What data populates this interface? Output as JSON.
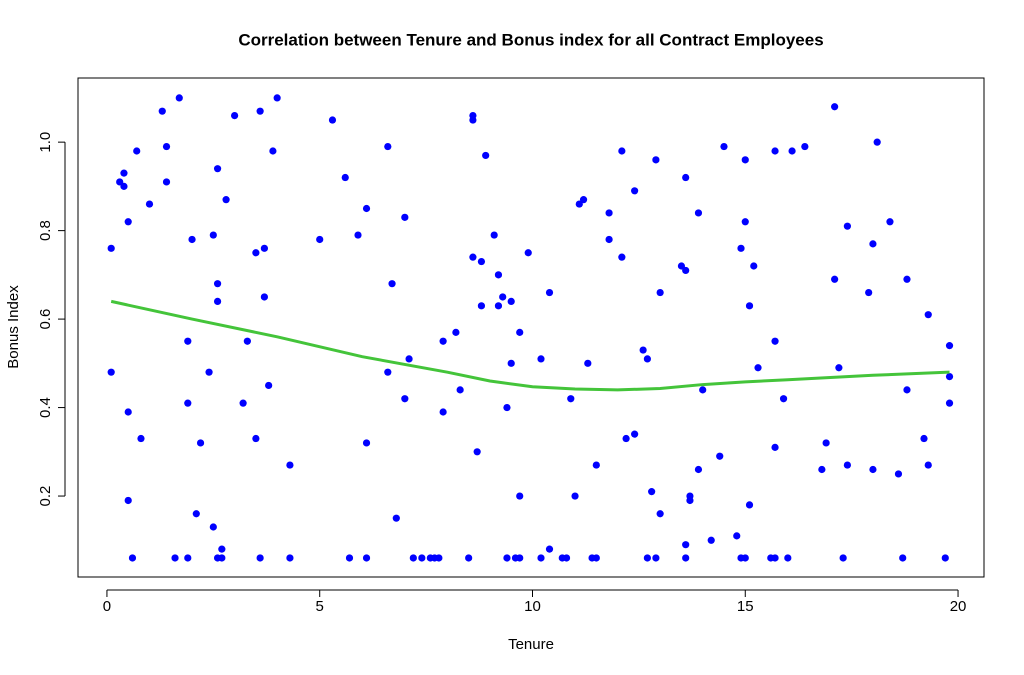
{
  "chart_data": {
    "type": "scatter",
    "title": "Correlation between Tenure and Bonus index for all Contract Employees",
    "x_label": "Tenure",
    "y_label": "Bonus Index",
    "xlim": [
      -0.68,
      20.61
    ],
    "ylim": [
      0.017,
      1.145
    ],
    "xticks": [
      0,
      5,
      10,
      15,
      20
    ],
    "yticks": [
      0.2,
      0.4,
      0.6,
      0.8,
      {
        "value": 1,
        "label": "1.0"
      }
    ],
    "grid": false,
    "points": {
      "color": "#0000ff",
      "x": [
        0.1,
        0.1,
        0.3,
        0.4,
        0.4,
        0.5,
        0.5,
        0.5,
        0.6,
        0.7,
        0.8,
        1.0,
        1.3,
        1.4,
        1.4,
        1.6,
        1.7,
        1.9,
        1.9,
        1.9,
        2.0,
        2.1,
        2.2,
        2.4,
        2.5,
        2.5,
        2.6,
        2.6,
        2.6,
        2.6,
        2.7,
        2.7,
        2.8,
        3.0,
        3.2,
        3.3,
        3.5,
        3.5,
        3.6,
        3.6,
        3.7,
        3.7,
        3.8,
        3.9,
        4.0,
        4.3,
        4.3,
        5.0,
        5.3,
        5.6,
        5.7,
        5.9,
        6.1,
        6.1,
        6.1,
        6.6,
        6.6,
        6.7,
        6.8,
        7.0,
        7.0,
        7.1,
        7.2,
        7.4,
        7.6,
        7.7,
        7.8,
        7.9,
        7.9,
        8.2,
        8.3,
        8.5,
        8.6,
        8.6,
        8.6,
        8.7,
        8.8,
        8.8,
        8.9,
        9.1,
        9.2,
        9.2,
        9.3,
        9.4,
        9.4,
        9.5,
        9.5,
        9.6,
        9.7,
        9.7,
        9.7,
        9.9,
        10.2,
        10.2,
        10.4,
        10.4,
        10.7,
        10.8,
        10.9,
        11.0,
        11.1,
        11.2,
        11.3,
        11.4,
        11.5,
        11.5,
        11.8,
        11.8,
        12.1,
        12.1,
        12.2,
        12.4,
        12.4,
        12.6,
        12.7,
        12.7,
        12.8,
        12.9,
        12.9,
        13.0,
        13.0,
        13.5,
        13.6,
        13.6,
        13.6,
        13.6,
        13.7,
        13.7,
        13.9,
        13.9,
        14.0,
        14.2,
        14.4,
        14.5,
        14.8,
        14.9,
        14.9,
        15.0,
        15.0,
        15.0,
        15.1,
        15.1,
        15.2,
        15.3,
        15.6,
        15.7,
        15.7,
        15.7,
        15.7,
        15.9,
        16.0,
        16.1,
        16.4,
        16.8,
        16.9,
        17.1,
        17.1,
        17.2,
        17.3,
        17.4,
        17.4,
        17.9,
        18.0,
        18.0,
        18.1,
        18.4,
        18.6,
        18.7,
        18.8,
        18.8,
        19.2,
        19.3,
        19.3,
        19.7,
        19.8,
        19.8,
        19.8
      ],
      "y": [
        0.76,
        0.48,
        0.91,
        0.93,
        0.9,
        0.82,
        0.39,
        0.19,
        0.06,
        0.98,
        0.33,
        0.86,
        1.07,
        0.99,
        0.91,
        0.06,
        1.1,
        0.55,
        0.41,
        0.06,
        0.78,
        0.16,
        0.32,
        0.48,
        0.79,
        0.13,
        0.94,
        0.68,
        0.64,
        0.06,
        0.08,
        0.06,
        0.87,
        1.06,
        0.41,
        0.55,
        0.75,
        0.33,
        1.07,
        0.06,
        0.76,
        0.65,
        0.45,
        0.98,
        1.1,
        0.27,
        0.06,
        0.78,
        1.05,
        0.92,
        0.06,
        0.79,
        0.85,
        0.32,
        0.06,
        0.99,
        0.48,
        0.68,
        0.15,
        0.83,
        0.42,
        0.51,
        0.06,
        0.06,
        0.06,
        0.06,
        0.06,
        0.55,
        0.39,
        0.57,
        0.44,
        0.06,
        1.06,
        1.05,
        0.74,
        0.3,
        0.73,
        0.63,
        0.97,
        0.79,
        0.7,
        0.63,
        0.65,
        0.4,
        0.06,
        0.64,
        0.5,
        0.06,
        0.57,
        0.2,
        0.06,
        0.75,
        0.51,
        0.06,
        0.66,
        0.08,
        0.06,
        0.06,
        0.42,
        0.2,
        0.86,
        0.87,
        0.5,
        0.06,
        0.27,
        0.06,
        0.84,
        0.78,
        0.98,
        0.74,
        0.33,
        0.89,
        0.34,
        0.53,
        0.51,
        0.06,
        0.21,
        0.96,
        0.06,
        0.66,
        0.16,
        0.72,
        0.92,
        0.71,
        0.09,
        0.06,
        0.2,
        0.19,
        0.84,
        0.26,
        0.44,
        0.1,
        0.29,
        0.99,
        0.11,
        0.76,
        0.06,
        0.96,
        0.82,
        0.06,
        0.63,
        0.18,
        0.72,
        0.49,
        0.06,
        0.98,
        0.55,
        0.31,
        0.06,
        0.42,
        0.06,
        0.98,
        0.99,
        0.26,
        0.32,
        1.08,
        0.69,
        0.49,
        0.06,
        0.81,
        0.27,
        0.66,
        0.77,
        0.26,
        1.0,
        0.82,
        0.25,
        0.06,
        0.69,
        0.44,
        0.33,
        0.61,
        0.27,
        0.06,
        0.54,
        0.47,
        0.41
      ]
    },
    "fit": {
      "color": "#44c43a",
      "x": [
        0.1,
        2,
        4,
        6,
        8,
        9,
        10,
        11,
        12,
        13,
        14,
        15,
        16,
        17,
        18,
        19.8
      ],
      "y": [
        0.64,
        0.6,
        0.56,
        0.515,
        0.48,
        0.46,
        0.447,
        0.442,
        0.44,
        0.443,
        0.452,
        0.458,
        0.463,
        0.468,
        0.473,
        0.48
      ]
    }
  }
}
